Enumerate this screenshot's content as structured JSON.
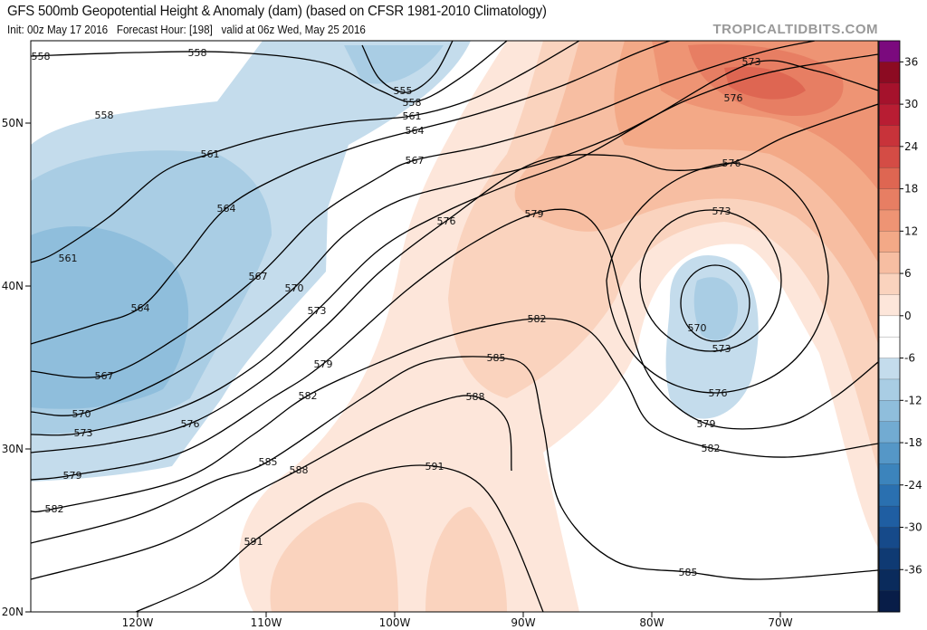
{
  "header": {
    "title": "GFS 500mb Geopotential Height & Anomaly (dam) (based on CFSR 1981-2010 Climatology)",
    "subtitle": "Init: 00z May 17 2016   Forecast Hour: [198]   valid at 06z Wed, May 25 2016",
    "watermark": "TROPICALTIDBITS.COM"
  },
  "map": {
    "lat_labels": [
      "50N",
      "40N",
      "30N",
      "20N"
    ],
    "lon_labels": [
      "120W",
      "110W",
      "100W",
      "90W",
      "80W",
      "70W"
    ],
    "contour_values": [
      555,
      558,
      561,
      564,
      567,
      570,
      573,
      576,
      579,
      582,
      585,
      588,
      591
    ],
    "contour_labels": [
      "558",
      "558",
      "558",
      "555",
      "558",
      "561",
      "564",
      "567",
      "561",
      "564",
      "567",
      "570",
      "573",
      "561",
      "564",
      "567",
      "570",
      "573",
      "576",
      "579",
      "582",
      "579",
      "582",
      "585",
      "588",
      "591",
      "591",
      "588",
      "585",
      "582",
      "579",
      "576",
      "573",
      "576",
      "576",
      "573",
      "570",
      "573",
      "576",
      "579",
      "582",
      "585"
    ]
  },
  "colorbar": {
    "labels": [
      "36",
      "30",
      "24",
      "18",
      "12",
      "6",
      "0",
      "-6",
      "-12",
      "-18",
      "-24",
      "-30",
      "-36"
    ],
    "bins_top_to_bottom": [
      "#7b0a7e",
      "#8c0b22",
      "#a5122c",
      "#b81d33",
      "#c8333a",
      "#d44c45",
      "#de6652",
      "#e77e63",
      "#ee9474",
      "#f3a987",
      "#f7bea2",
      "#fad3be",
      "#fde6da",
      "#ffffff",
      "#ffffff",
      "#c4dcec",
      "#a9cde4",
      "#8fbedc",
      "#72abd2",
      "#5597c7",
      "#3c84bc",
      "#2a70b0",
      "#1f5ea2",
      "#164a8a",
      "#0f3a73",
      "#0a2b5c",
      "#081d48"
    ]
  },
  "anomaly_colors": {
    "neg6": "#c4dcec",
    "neg9": "#a9cde4",
    "neg12": "#8fbedc",
    "pos6": "#fde6da",
    "pos9": "#fad3be",
    "pos12": "#f7bea2",
    "pos15": "#f3a987",
    "pos18": "#ee9474",
    "pos21": "#e77e63",
    "pos24": "#de6652",
    "pos27": "#d44c45"
  }
}
